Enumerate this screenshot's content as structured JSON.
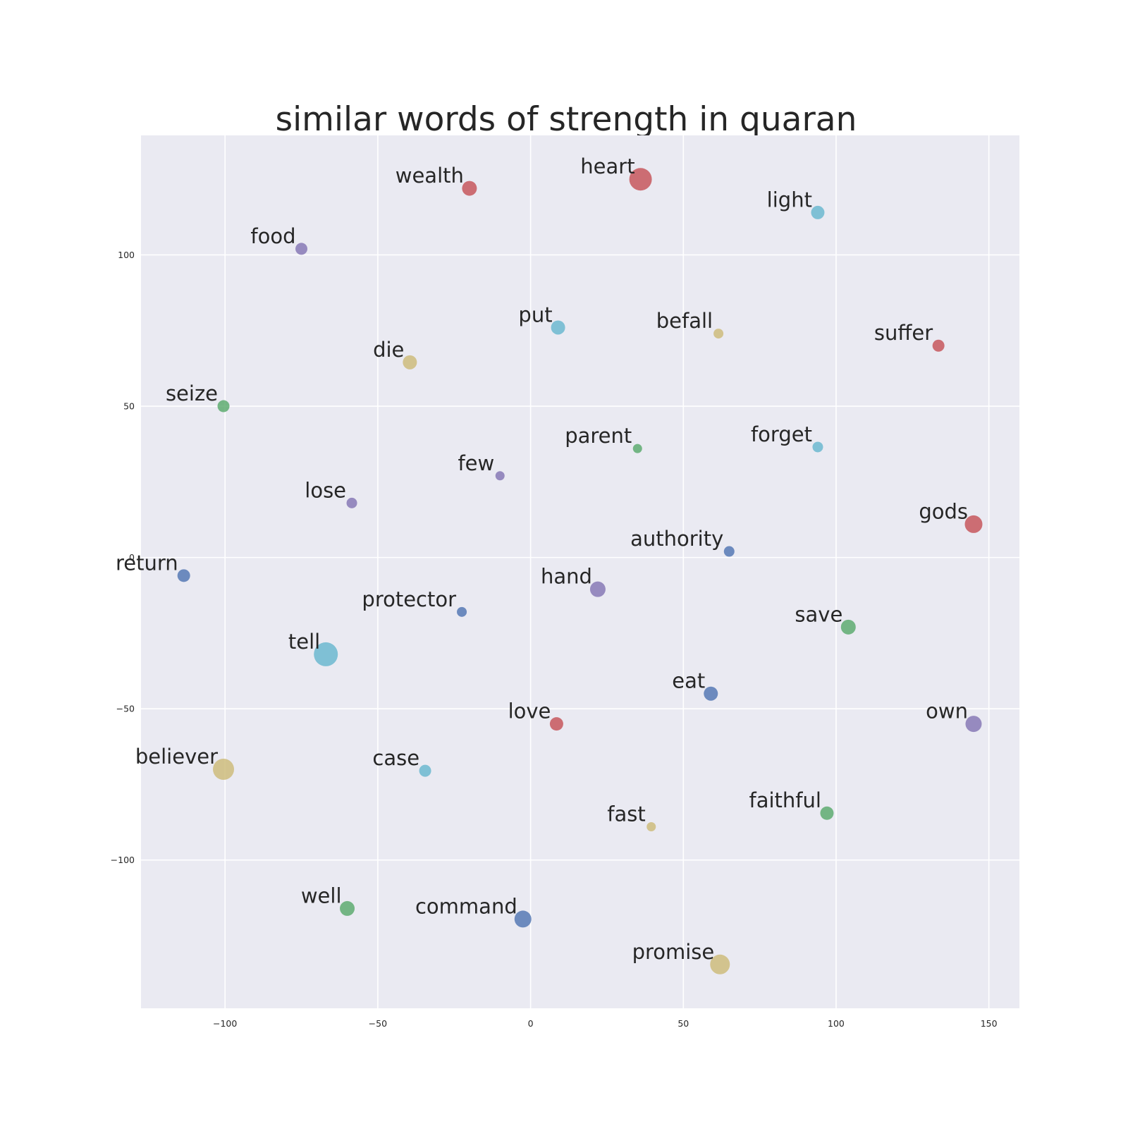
{
  "chart_data": {
    "type": "scatter",
    "title": "similar words of strength in quaran",
    "xlabel": "",
    "ylabel": "",
    "xlim": [
      -127.5,
      160
    ],
    "ylim": [
      -149,
      139.5
    ],
    "xticks": [
      -100,
      -50,
      0,
      50,
      100,
      150
    ],
    "yticks": [
      -100,
      -50,
      0,
      50,
      100
    ],
    "xtick_labels": [
      "−100",
      "−50",
      "0",
      "50",
      "100",
      "150"
    ],
    "ytick_labels": [
      "−100",
      "−50",
      "0",
      "50",
      "100"
    ],
    "grid": true,
    "palette": {
      "blue": "#4c72b0",
      "green": "#55a868",
      "red": "#c44e52",
      "purple": "#8172b2",
      "yellow": "#ccb974",
      "cyan": "#64b5cd"
    },
    "points": [
      {
        "label": "heart",
        "x": 36,
        "y": 125,
        "size": 16,
        "color": "red"
      },
      {
        "label": "wealth",
        "x": -20,
        "y": 122,
        "size": 10.5,
        "color": "red"
      },
      {
        "label": "light",
        "x": 94,
        "y": 114,
        "size": 9.5,
        "color": "cyan"
      },
      {
        "label": "food",
        "x": -75,
        "y": 102,
        "size": 8.5,
        "color": "purple"
      },
      {
        "label": "put",
        "x": 9,
        "y": 76,
        "size": 10,
        "color": "cyan"
      },
      {
        "label": "befall",
        "x": 61.5,
        "y": 74,
        "size": 7,
        "color": "yellow"
      },
      {
        "label": "suffer",
        "x": 133.5,
        "y": 70,
        "size": 8.5,
        "color": "red"
      },
      {
        "label": "die",
        "x": -39.5,
        "y": 64.5,
        "size": 10,
        "color": "yellow"
      },
      {
        "label": "seize",
        "x": -100.5,
        "y": 50,
        "size": 8.5,
        "color": "green"
      },
      {
        "label": "parent",
        "x": 35,
        "y": 36,
        "size": 6.5,
        "color": "green"
      },
      {
        "label": "forget",
        "x": 94,
        "y": 36.5,
        "size": 7.5,
        "color": "cyan"
      },
      {
        "label": "few",
        "x": -10,
        "y": 27,
        "size": 6.5,
        "color": "purple"
      },
      {
        "label": "lose",
        "x": -58.5,
        "y": 18,
        "size": 7.5,
        "color": "purple"
      },
      {
        "label": "gods",
        "x": 145,
        "y": 11,
        "size": 12.5,
        "color": "red"
      },
      {
        "label": "authority",
        "x": 65,
        "y": 2,
        "size": 7.5,
        "color": "blue"
      },
      {
        "label": "return",
        "x": -113.5,
        "y": -6,
        "size": 9,
        "color": "blue"
      },
      {
        "label": "hand",
        "x": 22,
        "y": -10.5,
        "size": 11,
        "color": "purple"
      },
      {
        "label": "protector",
        "x": -22.5,
        "y": -18,
        "size": 7,
        "color": "blue"
      },
      {
        "label": "save",
        "x": 104,
        "y": -23,
        "size": 10.5,
        "color": "green"
      },
      {
        "label": "tell",
        "x": -67,
        "y": -32,
        "size": 17,
        "color": "cyan"
      },
      {
        "label": "eat",
        "x": 59,
        "y": -45,
        "size": 10,
        "color": "blue"
      },
      {
        "label": "love",
        "x": 8.5,
        "y": -55,
        "size": 9.5,
        "color": "red"
      },
      {
        "label": "own",
        "x": 145,
        "y": -55,
        "size": 11.5,
        "color": "purple"
      },
      {
        "label": "believer",
        "x": -100.5,
        "y": -70,
        "size": 15,
        "color": "yellow"
      },
      {
        "label": "case",
        "x": -34.5,
        "y": -70.5,
        "size": 8.5,
        "color": "cyan"
      },
      {
        "label": "faithful",
        "x": 97,
        "y": -84.5,
        "size": 9.5,
        "color": "green"
      },
      {
        "label": "fast",
        "x": 39.5,
        "y": -89,
        "size": 6.5,
        "color": "yellow"
      },
      {
        "label": "well",
        "x": -60,
        "y": -116,
        "size": 10.5,
        "color": "green"
      },
      {
        "label": "command",
        "x": -2.5,
        "y": -119.5,
        "size": 12,
        "color": "blue"
      },
      {
        "label": "promise",
        "x": 62,
        "y": -134.5,
        "size": 14,
        "color": "yellow"
      }
    ]
  }
}
